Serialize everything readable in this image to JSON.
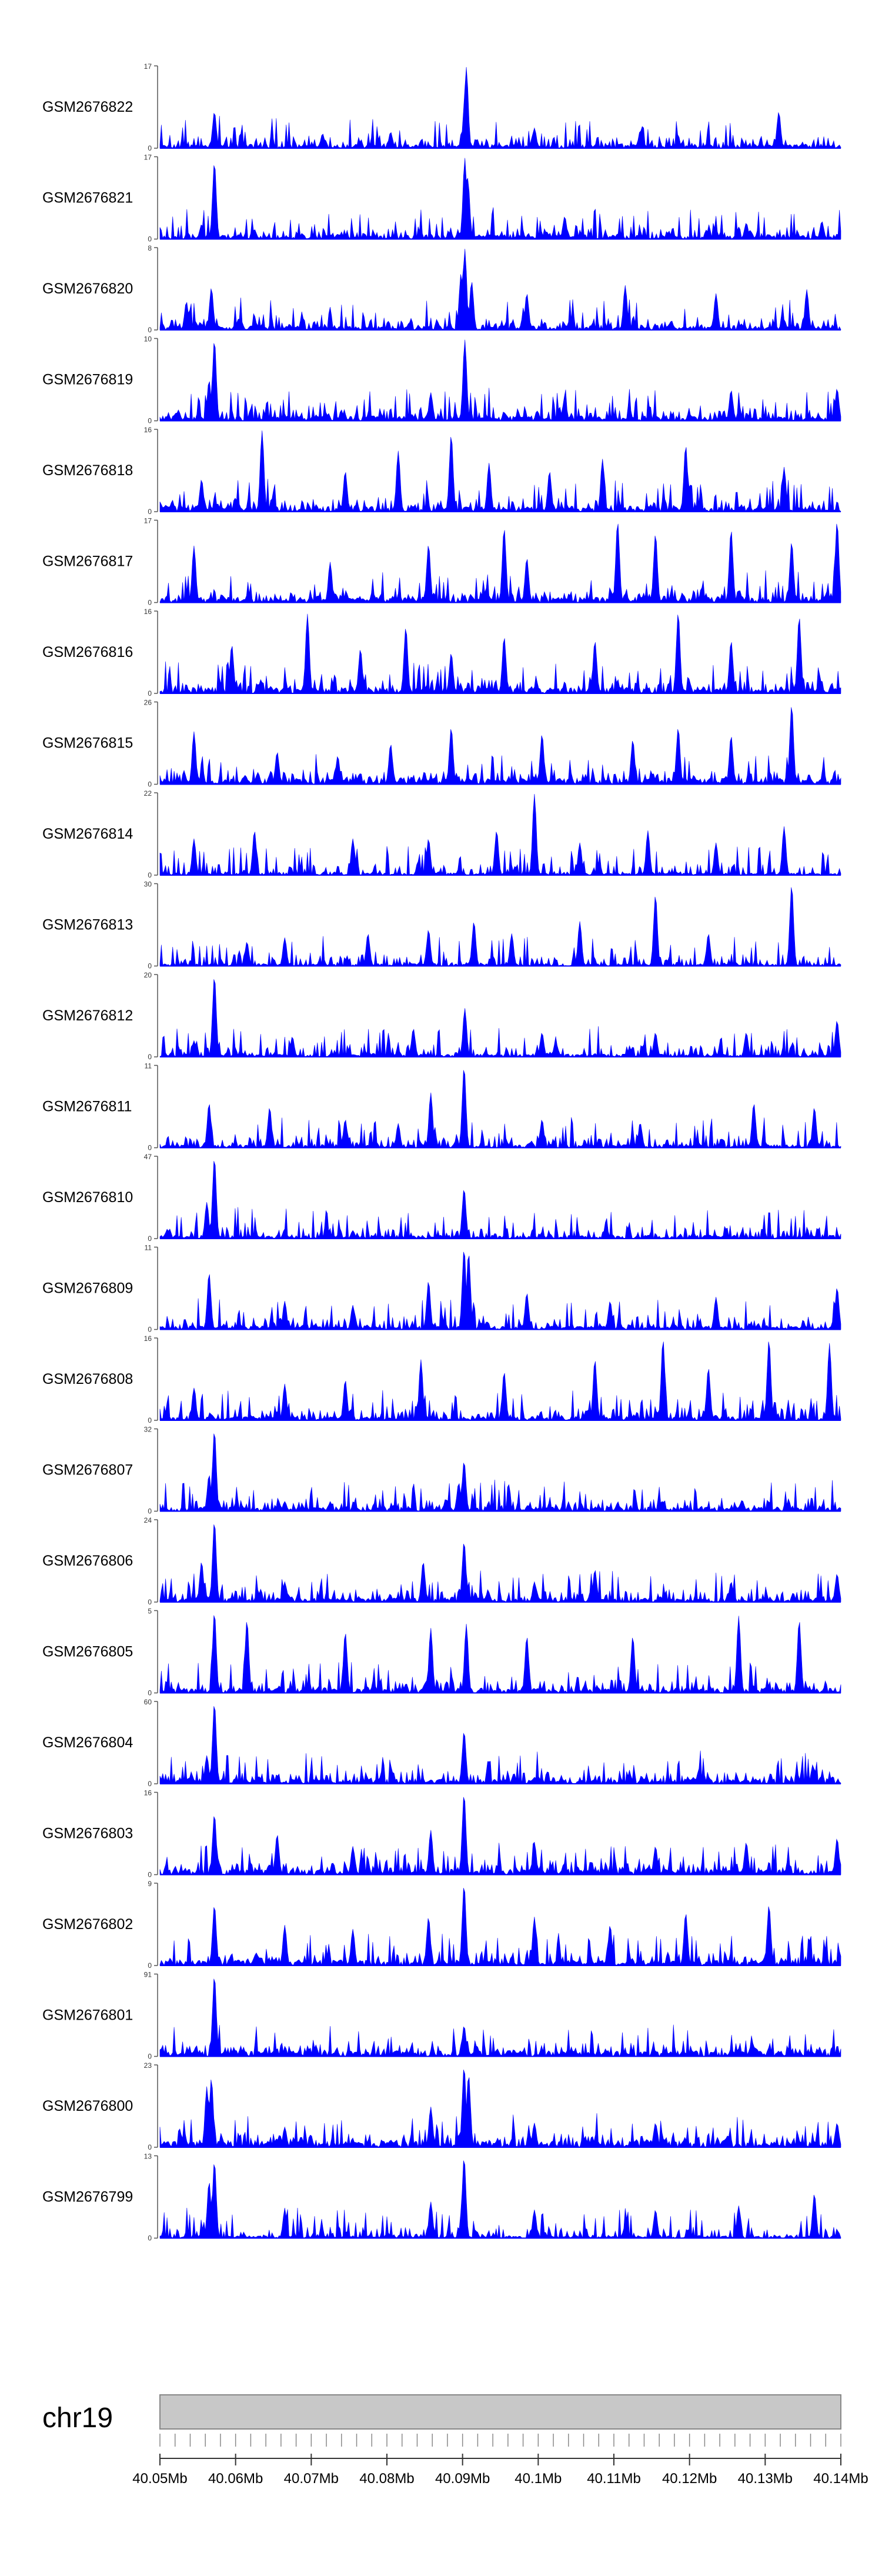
{
  "chart_data": {
    "type": "area",
    "title": "",
    "chromosome": "chr19",
    "x_axis": {
      "range_mb": [
        40.05,
        40.14
      ],
      "ticks": [
        {
          "value": 40.05,
          "label": "40.05Mb"
        },
        {
          "value": 40.06,
          "label": "40.06Mb"
        },
        {
          "value": 40.07,
          "label": "40.07Mb"
        },
        {
          "value": 40.08,
          "label": "40.08Mb"
        },
        {
          "value": 40.09,
          "label": "40.09Mb"
        },
        {
          "value": 40.1,
          "label": "40.1Mb"
        },
        {
          "value": 40.11,
          "label": "40.11Mb"
        },
        {
          "value": 40.12,
          "label": "40.12Mb"
        },
        {
          "value": 40.13,
          "label": "40.13Mb"
        },
        {
          "value": 40.14,
          "label": "40.14Mb"
        }
      ]
    },
    "series_color": "#0000ff",
    "tracks": [
      {
        "name": "GSM2676822",
        "ymax": 17,
        "ymin_label": "0",
        "ymax_label": "17",
        "peaks": [
          [
            40.0572,
            0.45
          ],
          [
            40.0905,
            1.0
          ],
          [
            40.0903,
            0.6
          ],
          [
            40.1318,
            0.45
          ],
          [
            40.0995,
            0.25
          ],
          [
            40.1135,
            0.22
          ],
          [
            40.0715,
            0.18
          ],
          [
            40.0805,
            0.2
          ]
        ]
      },
      {
        "name": "GSM2676821",
        "ymax": 17,
        "ymin_label": "0",
        "ymax_label": "17",
        "peaks": [
          [
            40.0572,
            0.95
          ],
          [
            40.0903,
            1.0
          ],
          [
            40.0907,
            0.75
          ],
          [
            40.0555,
            0.18
          ],
          [
            40.0625,
            0.12
          ],
          [
            40.1035,
            0.28
          ],
          [
            40.1275,
            0.2
          ],
          [
            40.1375,
            0.22
          ]
        ]
      },
      {
        "name": "GSM2676820",
        "ymax": 8,
        "ymin_label": "0",
        "ymax_label": "8",
        "peaks": [
          [
            40.0568,
            0.52
          ],
          [
            40.0903,
            1.0
          ],
          [
            40.0898,
            0.7
          ],
          [
            40.0912,
            0.6
          ],
          [
            40.0535,
            0.35
          ],
          [
            40.0985,
            0.45
          ],
          [
            40.1115,
            0.55
          ],
          [
            40.1235,
            0.45
          ],
          [
            40.1355,
            0.5
          ]
        ]
      },
      {
        "name": "GSM2676819",
        "ymax": 10,
        "ymin_label": "0",
        "ymax_label": "10",
        "peaks": [
          [
            40.0572,
            1.0
          ],
          [
            40.0903,
            1.0
          ],
          [
            40.0565,
            0.5
          ],
          [
            40.0858,
            0.35
          ],
          [
            40.1255,
            0.38
          ],
          [
            40.1395,
            0.4
          ],
          [
            40.1035,
            0.3
          ]
        ]
      },
      {
        "name": "GSM2676818",
        "ymax": 16,
        "ymin_label": "0",
        "ymax_label": "16",
        "peaks": [
          [
            40.0635,
            1.0
          ],
          [
            40.0885,
            0.95
          ],
          [
            40.0815,
            0.75
          ],
          [
            40.1085,
            0.65
          ],
          [
            40.1195,
            0.82
          ],
          [
            40.0935,
            0.6
          ],
          [
            40.1325,
            0.55
          ],
          [
            40.0555,
            0.4
          ],
          [
            40.0745,
            0.5
          ],
          [
            40.1015,
            0.5
          ]
        ]
      },
      {
        "name": "GSM2676817",
        "ymax": 17,
        "ymin_label": "0",
        "ymax_label": "17",
        "peaks": [
          [
            40.1105,
            1.0
          ],
          [
            40.1395,
            1.0
          ],
          [
            40.0955,
            0.92
          ],
          [
            40.1255,
            0.9
          ],
          [
            40.0855,
            0.72
          ],
          [
            40.1155,
            0.85
          ],
          [
            40.0545,
            0.7
          ],
          [
            40.1335,
            0.75
          ],
          [
            40.0725,
            0.5
          ],
          [
            40.0985,
            0.55
          ]
        ]
      },
      {
        "name": "GSM2676816",
        "ymax": 16,
        "ymin_label": "0",
        "ymax_label": "16",
        "peaks": [
          [
            40.0695,
            0.98
          ],
          [
            40.1185,
            1.0
          ],
          [
            40.0825,
            0.82
          ],
          [
            40.1345,
            0.95
          ],
          [
            40.0955,
            0.7
          ],
          [
            40.1075,
            0.65
          ],
          [
            40.0595,
            0.6
          ],
          [
            40.1255,
            0.65
          ],
          [
            40.0765,
            0.55
          ],
          [
            40.0885,
            0.5
          ]
        ]
      },
      {
        "name": "GSM2676815",
        "ymax": 26,
        "ymin_label": "0",
        "ymax_label": "26",
        "peaks": [
          [
            40.1335,
            0.98
          ],
          [
            40.0885,
            0.7
          ],
          [
            40.1185,
            0.7
          ],
          [
            40.0545,
            0.65
          ],
          [
            40.1005,
            0.62
          ],
          [
            40.1125,
            0.55
          ],
          [
            40.0805,
            0.5
          ],
          [
            40.1255,
            0.6
          ],
          [
            40.0655,
            0.4
          ],
          [
            40.0735,
            0.35
          ]
        ]
      },
      {
        "name": "GSM2676814",
        "ymax": 22,
        "ymin_label": "0",
        "ymax_label": "22",
        "peaks": [
          [
            40.0995,
            1.0
          ],
          [
            40.1325,
            0.6
          ],
          [
            40.0945,
            0.55
          ],
          [
            40.0625,
            0.55
          ],
          [
            40.1145,
            0.55
          ],
          [
            40.0755,
            0.45
          ],
          [
            40.0855,
            0.45
          ],
          [
            40.1235,
            0.4
          ],
          [
            40.0545,
            0.45
          ],
          [
            40.1055,
            0.4
          ]
        ]
      },
      {
        "name": "GSM2676813",
        "ymax": 30,
        "ymin_label": "0",
        "ymax_label": "30",
        "peaks": [
          [
            40.1335,
            1.0
          ],
          [
            40.1155,
            0.88
          ],
          [
            40.1055,
            0.55
          ],
          [
            40.0915,
            0.55
          ],
          [
            40.0855,
            0.45
          ],
          [
            40.0775,
            0.4
          ],
          [
            40.0665,
            0.35
          ],
          [
            40.1225,
            0.4
          ],
          [
            40.0615,
            0.3
          ],
          [
            40.0965,
            0.4
          ]
        ]
      },
      {
        "name": "GSM2676812",
        "ymax": 20,
        "ymin_label": "0",
        "ymax_label": "20",
        "peaks": [
          [
            40.0572,
            1.0
          ],
          [
            40.0903,
            0.6
          ],
          [
            40.1395,
            0.45
          ],
          [
            40.0835,
            0.35
          ],
          [
            40.1005,
            0.3
          ],
          [
            40.1155,
            0.3
          ],
          [
            40.0675,
            0.25
          ],
          [
            40.1275,
            0.3
          ],
          [
            40.0545,
            0.2
          ]
        ]
      },
      {
        "name": "GSM2676811",
        "ymax": 11,
        "ymin_label": "0",
        "ymax_label": "11",
        "peaks": [
          [
            40.0902,
            1.0
          ],
          [
            40.0858,
            0.68
          ],
          [
            40.0565,
            0.55
          ],
          [
            40.0645,
            0.5
          ],
          [
            40.1285,
            0.55
          ],
          [
            40.1365,
            0.5
          ],
          [
            40.1005,
            0.35
          ],
          [
            40.0745,
            0.35
          ],
          [
            40.1135,
            0.3
          ],
          [
            40.0815,
            0.3
          ]
        ]
      },
      {
        "name": "GSM2676810",
        "ymax": 47,
        "ymin_label": "0",
        "ymax_label": "47",
        "peaks": [
          [
            40.0572,
            1.0
          ],
          [
            40.0902,
            0.62
          ],
          [
            40.0562,
            0.45
          ],
          [
            40.0665,
            0.12
          ],
          [
            40.0755,
            0.1
          ],
          [
            40.1005,
            0.08
          ],
          [
            40.1205,
            0.08
          ]
        ]
      },
      {
        "name": "GSM2676809",
        "ymax": 11,
        "ymin_label": "0",
        "ymax_label": "11",
        "peaks": [
          [
            40.0902,
            1.0
          ],
          [
            40.0908,
            0.95
          ],
          [
            40.0565,
            0.7
          ],
          [
            40.0855,
            0.6
          ],
          [
            40.1395,
            0.52
          ],
          [
            40.0985,
            0.45
          ],
          [
            40.1235,
            0.4
          ],
          [
            40.0665,
            0.35
          ],
          [
            40.1095,
            0.35
          ],
          [
            40.0755,
            0.3
          ]
        ]
      },
      {
        "name": "GSM2676808",
        "ymax": 16,
        "ymin_label": "0",
        "ymax_label": "16",
        "peaks": [
          [
            40.1165,
            1.0
          ],
          [
            40.1305,
            1.0
          ],
          [
            40.1385,
            0.95
          ],
          [
            40.1075,
            0.75
          ],
          [
            40.0845,
            0.75
          ],
          [
            40.0955,
            0.6
          ],
          [
            40.1225,
            0.65
          ],
          [
            40.0745,
            0.5
          ],
          [
            40.0665,
            0.45
          ],
          [
            40.0545,
            0.4
          ]
        ]
      },
      {
        "name": "GSM2676807",
        "ymax": 32,
        "ymin_label": "0",
        "ymax_label": "32",
        "peaks": [
          [
            40.0572,
            1.0
          ],
          [
            40.0902,
            0.62
          ],
          [
            40.0565,
            0.45
          ],
          [
            40.0895,
            0.35
          ],
          [
            40.0665,
            0.12
          ],
          [
            40.1105,
            0.1
          ],
          [
            40.1305,
            0.12
          ],
          [
            40.1405,
            0.15
          ]
        ]
      },
      {
        "name": "GSM2676806",
        "ymax": 24,
        "ymin_label": "0",
        "ymax_label": "24",
        "peaks": [
          [
            40.0572,
            1.0
          ],
          [
            40.0902,
            0.75
          ],
          [
            40.0555,
            0.5
          ],
          [
            40.0848,
            0.5
          ],
          [
            40.1075,
            0.4
          ],
          [
            40.1395,
            0.35
          ],
          [
            40.0665,
            0.25
          ],
          [
            40.0995,
            0.25
          ],
          [
            40.1255,
            0.25
          ]
        ]
      },
      {
        "name": "GSM2676805",
        "ymax": 5,
        "ymin_label": "0",
        "ymax_label": "5",
        "peaks": [
          [
            40.0572,
            1.0
          ],
          [
            40.0615,
            0.9
          ],
          [
            40.0858,
            0.8
          ],
          [
            40.0905,
            0.85
          ],
          [
            40.1265,
            0.95
          ],
          [
            40.1345,
            0.9
          ],
          [
            40.0745,
            0.75
          ],
          [
            40.0985,
            0.7
          ],
          [
            40.1125,
            0.7
          ],
          [
            40.1405,
            0.8
          ]
        ]
      },
      {
        "name": "GSM2676804",
        "ymax": 60,
        "ymin_label": "0",
        "ymax_label": "60",
        "peaks": [
          [
            40.0572,
            1.0
          ],
          [
            40.0902,
            0.65
          ],
          [
            40.0562,
            0.35
          ],
          [
            40.0655,
            0.1
          ],
          [
            40.0995,
            0.08
          ],
          [
            40.1205,
            0.08
          ],
          [
            40.1405,
            0.08
          ]
        ]
      },
      {
        "name": "GSM2676803",
        "ymax": 16,
        "ymin_label": "0",
        "ymax_label": "16",
        "peaks": [
          [
            40.0902,
            1.0
          ],
          [
            40.0572,
            0.75
          ],
          [
            40.0858,
            0.55
          ],
          [
            40.0655,
            0.5
          ],
          [
            40.1395,
            0.45
          ],
          [
            40.0995,
            0.4
          ],
          [
            40.1275,
            0.4
          ],
          [
            40.0755,
            0.35
          ],
          [
            40.1155,
            0.35
          ]
        ]
      },
      {
        "name": "GSM2676802",
        "ymax": 9,
        "ymin_label": "0",
        "ymax_label": "9",
        "peaks": [
          [
            40.0902,
            1.0
          ],
          [
            40.0572,
            0.75
          ],
          [
            40.1405,
            0.9
          ],
          [
            40.1305,
            0.75
          ],
          [
            40.0855,
            0.6
          ],
          [
            40.0995,
            0.6
          ],
          [
            40.1195,
            0.65
          ],
          [
            40.0665,
            0.5
          ],
          [
            40.1095,
            0.5
          ],
          [
            40.0755,
            0.45
          ]
        ]
      },
      {
        "name": "GSM2676801",
        "ymax": 91,
        "ymin_label": "0",
        "ymax_label": "91",
        "peaks": [
          [
            40.0572,
            1.0
          ],
          [
            40.0902,
            0.38
          ],
          [
            40.1405,
            0.12
          ],
          [
            40.0665,
            0.05
          ],
          [
            40.1005,
            0.05
          ],
          [
            40.1205,
            0.05
          ]
        ]
      },
      {
        "name": "GSM2676800",
        "ymax": 23,
        "ymin_label": "0",
        "ymax_label": "23",
        "peaks": [
          [
            40.0902,
            1.0
          ],
          [
            40.0908,
            0.9
          ],
          [
            40.0568,
            0.85
          ],
          [
            40.0562,
            0.75
          ],
          [
            40.0858,
            0.5
          ],
          [
            40.0995,
            0.3
          ],
          [
            40.1395,
            0.3
          ],
          [
            40.1155,
            0.3
          ],
          [
            40.0665,
            0.25
          ]
        ]
      },
      {
        "name": "GSM2676799",
        "ymax": 13,
        "ymin_label": "0",
        "ymax_label": "13",
        "peaks": [
          [
            40.0902,
            1.0
          ],
          [
            40.0572,
            0.95
          ],
          [
            40.0565,
            0.7
          ],
          [
            40.1365,
            0.55
          ],
          [
            40.1265,
            0.4
          ],
          [
            40.0858,
            0.45
          ],
          [
            40.0995,
            0.35
          ],
          [
            40.1155,
            0.35
          ],
          [
            40.0665,
            0.35
          ]
        ]
      }
    ]
  }
}
